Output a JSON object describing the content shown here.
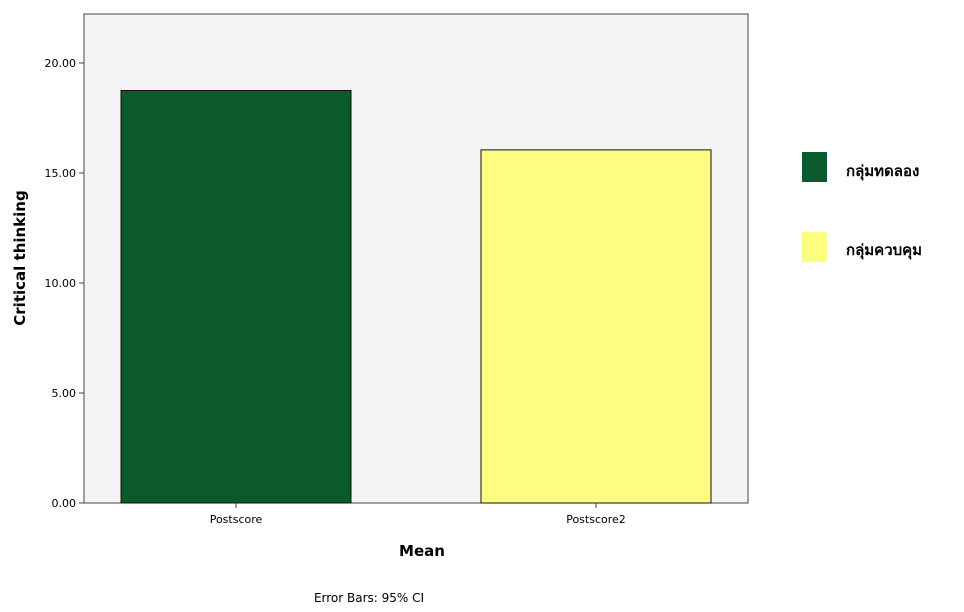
{
  "chart_data": {
    "type": "bar",
    "categories": [
      "Postscore",
      "Postscore2"
    ],
    "values": [
      18.75,
      16.05
    ],
    "colors": [
      "#0b5a2b",
      "#fdfd80"
    ],
    "xlabel": "Mean",
    "ylabel": "Critical thinking",
    "ylim": [
      0,
      22
    ],
    "yticks": [
      0,
      5,
      10,
      15,
      20
    ],
    "ytick_labels": [
      "0.00",
      "5.00",
      "10.00",
      "15.00",
      "20.00"
    ],
    "legend_position": "right",
    "legend": [
      {
        "label": "กลุ่มทดลอง",
        "color": "#0b5a2b"
      },
      {
        "label": "กลุ่มควบคุม",
        "color": "#fdfd80"
      }
    ],
    "footnote": "Error Bars: 95% CI",
    "plot_background": "#f4f4f4",
    "grid": false
  }
}
